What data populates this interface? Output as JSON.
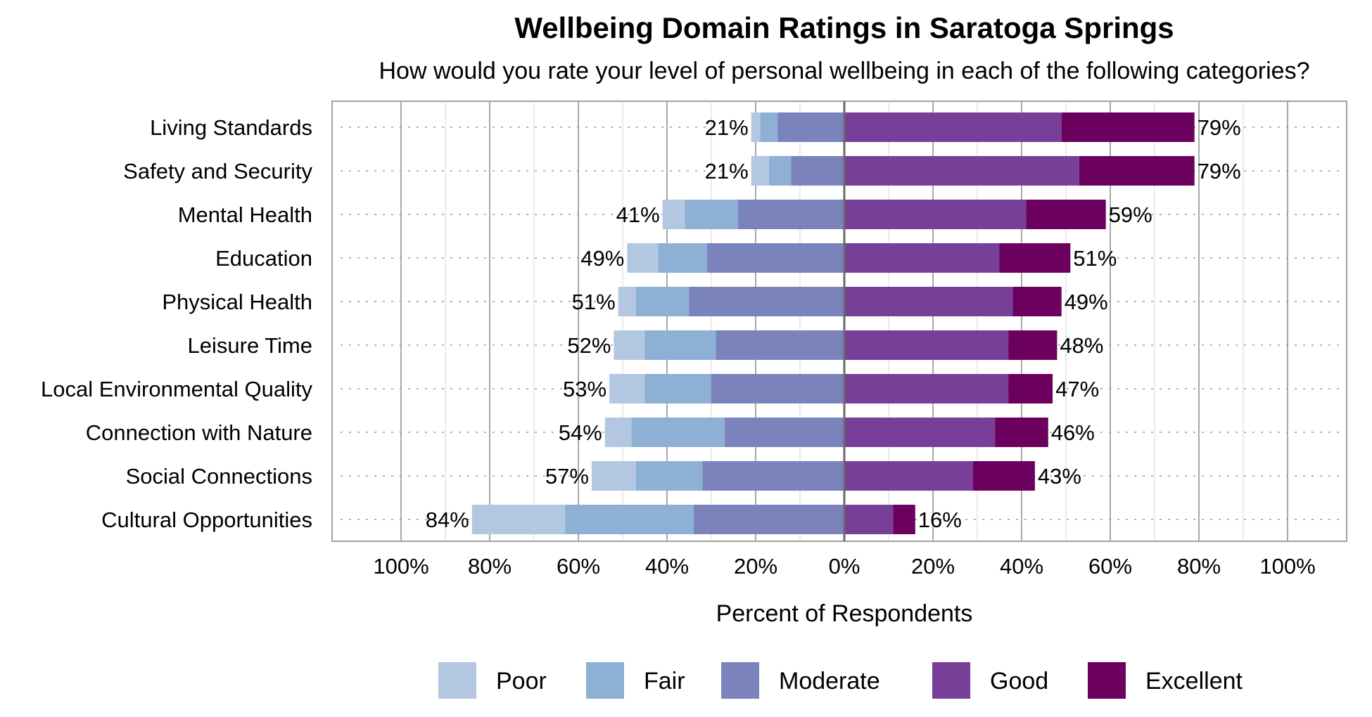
{
  "chart_data": {
    "type": "bar",
    "orientation": "horizontal",
    "stacking": "diverging",
    "title": "Wellbeing Domain Ratings in Saratoga Springs",
    "subtitle": "How would you rate your level of personal wellbeing in each of the following categories?",
    "xlabel": "Percent of Respondents",
    "xlim": [
      -100,
      100
    ],
    "x_ticks": [
      -100,
      -80,
      -60,
      -40,
      -20,
      0,
      20,
      40,
      60,
      80,
      100
    ],
    "x_tick_labels": [
      "100%",
      "80%",
      "60%",
      "40%",
      "20%",
      "0%",
      "20%",
      "40%",
      "60%",
      "80%",
      "100%"
    ],
    "grid": true,
    "legend_position": "bottom",
    "categories": [
      "Living Standards",
      "Safety and Security",
      "Mental Health",
      "Education",
      "Physical Health",
      "Leisure Time",
      "Local Environmental Quality",
      "Connection with Nature",
      "Social Connections",
      "Cultural Opportunities"
    ],
    "series": [
      {
        "name": "Poor",
        "side": "negative",
        "color": "#b3c7e0",
        "values": [
          2,
          4,
          5,
          7,
          4,
          7,
          8,
          6,
          10,
          21
        ]
      },
      {
        "name": "Fair",
        "side": "negative",
        "color": "#8db0d4",
        "values": [
          4,
          5,
          12,
          11,
          12,
          16,
          15,
          21,
          15,
          29
        ]
      },
      {
        "name": "Moderate",
        "side": "negative",
        "color": "#7a83bb",
        "values": [
          15,
          12,
          24,
          31,
          35,
          29,
          30,
          27,
          32,
          34
        ]
      },
      {
        "name": "Good",
        "side": "positive",
        "color": "#783f98",
        "values": [
          49,
          53,
          41,
          35,
          38,
          37,
          37,
          34,
          29,
          11
        ]
      },
      {
        "name": "Excellent",
        "side": "positive",
        "color": "#6b005f",
        "values": [
          30,
          26,
          18,
          16,
          11,
          11,
          10,
          12,
          14,
          5
        ]
      }
    ],
    "negative_totals": [
      "21%",
      "21%",
      "41%",
      "49%",
      "51%",
      "52%",
      "53%",
      "54%",
      "57%",
      "84%"
    ],
    "positive_totals": [
      "79%",
      "79%",
      "59%",
      "51%",
      "49%",
      "48%",
      "47%",
      "46%",
      "43%",
      "16%"
    ]
  }
}
